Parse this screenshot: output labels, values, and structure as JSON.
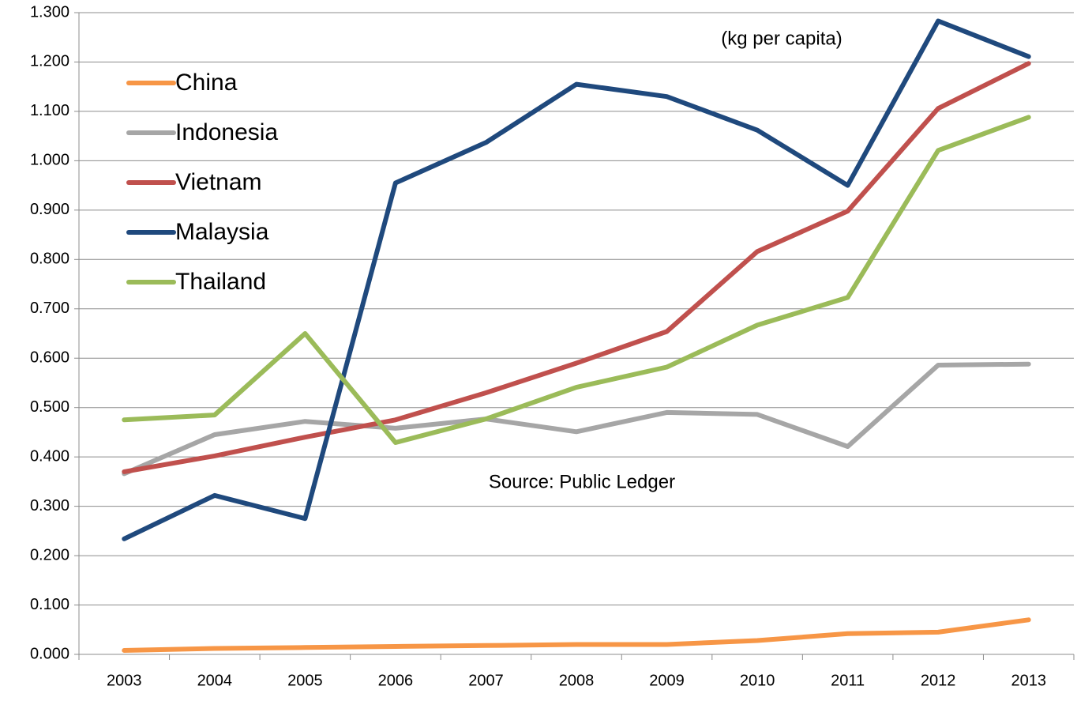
{
  "chart_data": {
    "type": "line",
    "annotations": [
      "(kg per capita)",
      "Source: Public Ledger"
    ],
    "categories": [
      "2003",
      "2004",
      "2005",
      "2006",
      "2007",
      "2008",
      "2009",
      "2010",
      "2011",
      "2012",
      "2013"
    ],
    "series": [
      {
        "name": "China",
        "color": "#f79646",
        "values": [
          0.008,
          0.012,
          0.014,
          0.016,
          0.018,
          0.02,
          0.02,
          0.028,
          0.042,
          0.045,
          0.07
        ]
      },
      {
        "name": "Indonesia",
        "color": "#a6a6a6",
        "values": [
          0.366,
          0.445,
          0.472,
          0.458,
          0.477,
          0.451,
          0.49,
          0.486,
          0.421,
          0.586,
          0.588
        ]
      },
      {
        "name": "Vietnam",
        "color": "#c0504d",
        "values": [
          0.37,
          0.402,
          0.44,
          0.475,
          0.53,
          0.59,
          0.654,
          0.816,
          0.898,
          1.106,
          1.197
        ]
      },
      {
        "name": "Malaysia",
        "color": "#1f497d",
        "values": [
          0.234,
          0.322,
          0.275,
          0.955,
          1.037,
          1.155,
          1.13,
          1.062,
          0.95,
          1.283,
          1.211
        ]
      },
      {
        "name": "Thailand",
        "color": "#9bbb59",
        "values": [
          0.475,
          0.485,
          0.65,
          0.429,
          0.477,
          0.541,
          0.582,
          0.667,
          0.723,
          1.021,
          1.088
        ]
      }
    ],
    "ylim": [
      0,
      1.3
    ],
    "yticks": [
      {
        "value": 0,
        "label": "0.000"
      },
      {
        "value": 0.1,
        "label": "0.100"
      },
      {
        "value": 0.2,
        "label": "0.200"
      },
      {
        "value": 0.3,
        "label": "0.300"
      },
      {
        "value": 0.4,
        "label": "0.400"
      },
      {
        "value": 0.5,
        "label": "0.500"
      },
      {
        "value": 0.6,
        "label": "0.600"
      },
      {
        "value": 0.7,
        "label": "0.700"
      },
      {
        "value": 0.8,
        "label": "0.800"
      },
      {
        "value": 0.9,
        "label": "0.900"
      },
      {
        "value": 1.0,
        "label": "1.000"
      },
      {
        "value": 1.1,
        "label": "1.100"
      },
      {
        "value": 1.2,
        "label": "1.200"
      },
      {
        "value": 1.3,
        "label": "1.300"
      }
    ],
    "grid": true,
    "legend": "upper left"
  }
}
